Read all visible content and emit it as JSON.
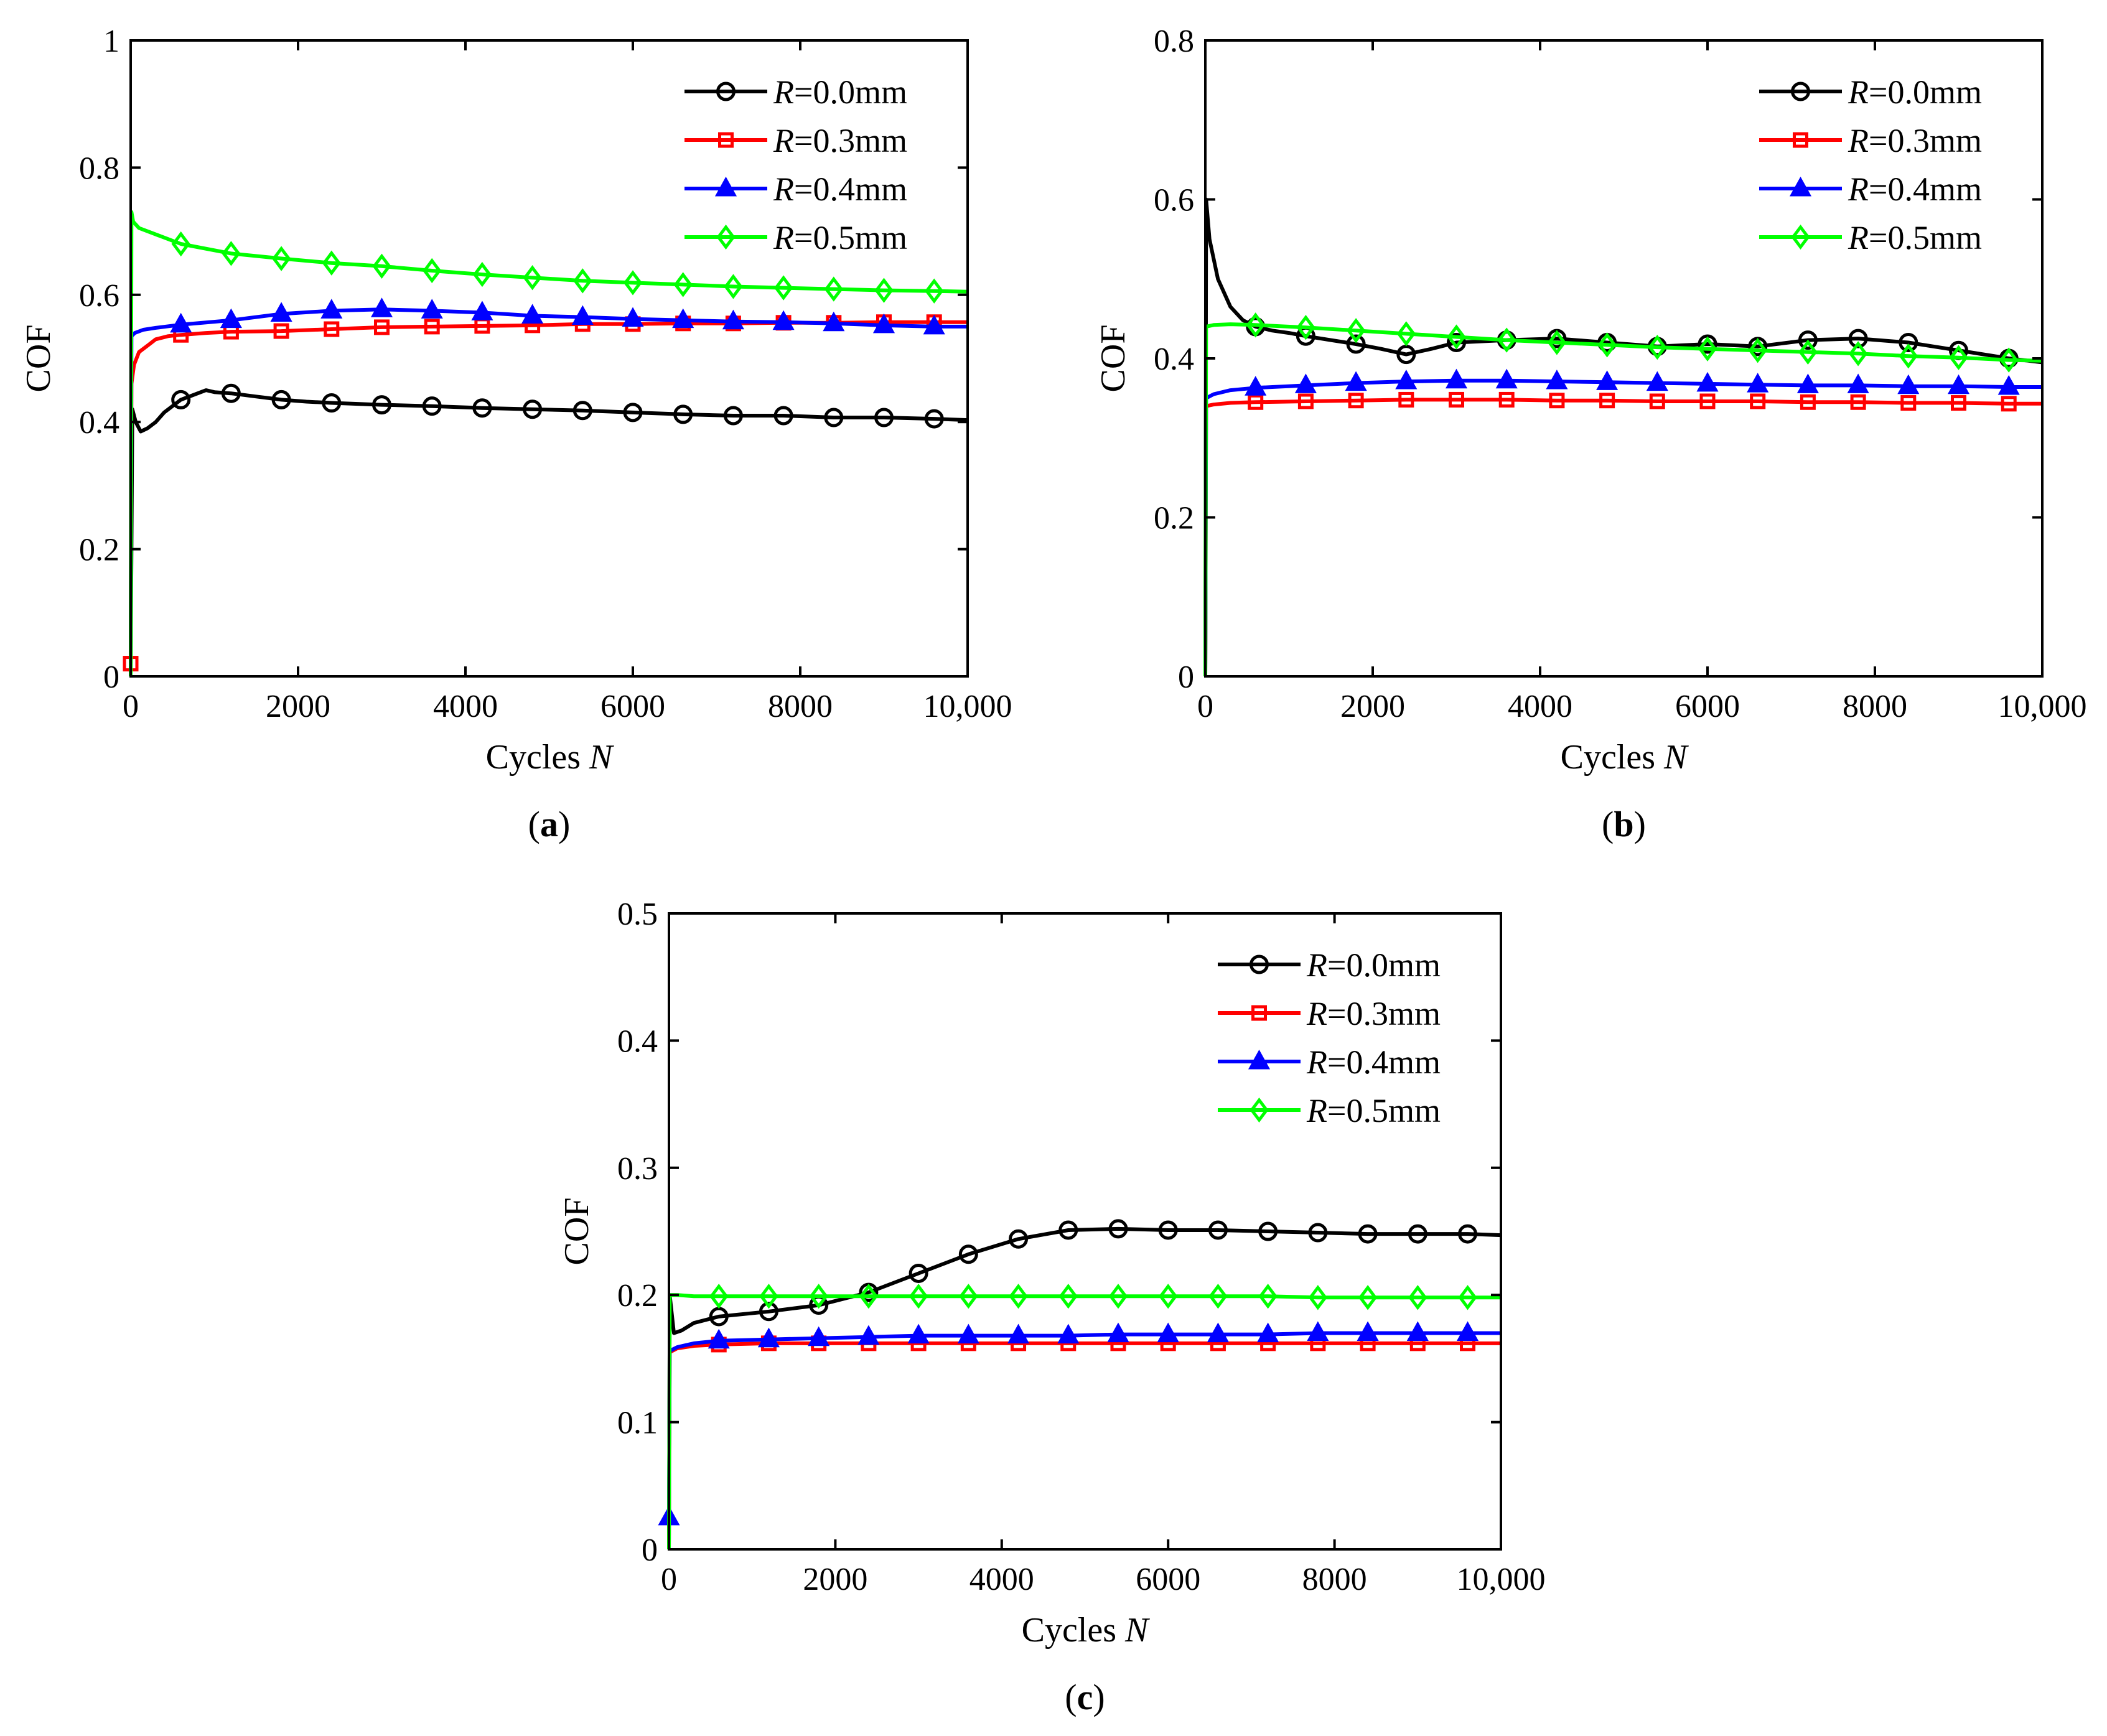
{
  "figure": {
    "panels_count": 3,
    "colors": {
      "R=0.0mm": "#000000",
      "R=0.3mm": "#ff0000",
      "R=0.4mm": "#0000ff",
      "R=0.5mm": "#00ff00",
      "axes": "#000000",
      "background": "#ffffff"
    },
    "legend_prefix": "R",
    "legend_labels": [
      "=0.0mm",
      "=0.3mm",
      "=0.4mm",
      "=0.5mm"
    ],
    "markers": [
      "circle",
      "square",
      "triangle",
      "diamond"
    ]
  },
  "chart_data": [
    {
      "type": "line",
      "panel_label": "a",
      "title": "",
      "xlabel": "Cycles",
      "xlabel_var": "N",
      "ylabel": "COF",
      "xlim": [
        0,
        10000
      ],
      "ylim": [
        0,
        1
      ],
      "xticks": [
        0,
        2000,
        4000,
        6000,
        8000,
        10000
      ],
      "xtick_labels": [
        "0",
        "2000",
        "4000",
        "6000",
        "8000",
        "10,000"
      ],
      "yticks": [
        0,
        0.2,
        0.4,
        0.6,
        0.8,
        1
      ],
      "ytick_labels": [
        "0",
        "0.2",
        "0.4",
        "0.6",
        "0.8",
        "1"
      ],
      "legend_position": "top-right",
      "grid": false,
      "series": [
        {
          "name": "R=0.0mm",
          "marker": "circle",
          "x": [
            0,
            20,
            60,
            120,
            200,
            300,
            400,
            600,
            800,
            900,
            1000,
            1200,
            1500,
            1800,
            2100,
            2400,
            3000,
            3600,
            4200,
            4800,
            5400,
            6000,
            6600,
            7200,
            7800,
            8400,
            9000,
            9600,
            10000
          ],
          "y": [
            0.0,
            0.42,
            0.4,
            0.385,
            0.39,
            0.4,
            0.415,
            0.435,
            0.445,
            0.45,
            0.447,
            0.445,
            0.44,
            0.435,
            0.432,
            0.43,
            0.427,
            0.425,
            0.422,
            0.42,
            0.418,
            0.415,
            0.412,
            0.41,
            0.41,
            0.407,
            0.407,
            0.405,
            0.403
          ]
        },
        {
          "name": "R=0.3mm",
          "marker": "square",
          "x": [
            0,
            10,
            40,
            100,
            200,
            300,
            450,
            600,
            900,
            1200,
            1800,
            2400,
            3000,
            3600,
            4200,
            4800,
            5400,
            6000,
            6600,
            7200,
            7800,
            8400,
            9000,
            9600,
            10000
          ],
          "y": [
            0.02,
            0.46,
            0.49,
            0.51,
            0.52,
            0.53,
            0.535,
            0.537,
            0.54,
            0.542,
            0.543,
            0.546,
            0.549,
            0.55,
            0.551,
            0.552,
            0.554,
            0.554,
            0.555,
            0.555,
            0.556,
            0.556,
            0.557,
            0.557,
            0.557
          ]
        },
        {
          "name": "R=0.4mm",
          "marker": "triangle",
          "x": [
            0,
            10,
            50,
            150,
            300,
            600,
            1200,
            1800,
            2400,
            3000,
            3600,
            4200,
            4800,
            5400,
            6000,
            6600,
            7200,
            7800,
            8400,
            9000,
            9600,
            10000
          ],
          "y": [
            0.0,
            0.535,
            0.54,
            0.545,
            0.548,
            0.553,
            0.56,
            0.57,
            0.575,
            0.577,
            0.575,
            0.572,
            0.567,
            0.565,
            0.562,
            0.56,
            0.558,
            0.557,
            0.555,
            0.552,
            0.55,
            0.55
          ]
        },
        {
          "name": "R=0.5mm",
          "marker": "diamond",
          "x": [
            0,
            10,
            30,
            100,
            300,
            600,
            1200,
            1800,
            2400,
            3000,
            3600,
            4200,
            4800,
            5400,
            6000,
            6600,
            7200,
            7800,
            8400,
            9000,
            9600,
            10000
          ],
          "y": [
            0.0,
            0.73,
            0.715,
            0.705,
            0.695,
            0.68,
            0.665,
            0.657,
            0.65,
            0.645,
            0.638,
            0.632,
            0.627,
            0.622,
            0.619,
            0.616,
            0.613,
            0.611,
            0.609,
            0.607,
            0.606,
            0.605
          ]
        }
      ]
    },
    {
      "type": "line",
      "panel_label": "b",
      "title": "",
      "xlabel": "Cycles",
      "xlabel_var": "N",
      "ylabel": "COF",
      "xlim": [
        0,
        10000
      ],
      "ylim": [
        0,
        0.8
      ],
      "xticks": [
        0,
        2000,
        4000,
        6000,
        8000,
        10000
      ],
      "xtick_labels": [
        "0",
        "2000",
        "4000",
        "6000",
        "8000",
        "10,000"
      ],
      "yticks": [
        0,
        0.2,
        0.4,
        0.6,
        0.8
      ],
      "ytick_labels": [
        "0",
        "0.2",
        "0.4",
        "0.6",
        "0.8"
      ],
      "legend_position": "top-right",
      "grid": false,
      "series": [
        {
          "name": "R=0.0mm",
          "marker": "circle",
          "x": [
            0,
            10,
            50,
            150,
            300,
            450,
            600,
            800,
            1000,
            1200,
            1500,
            1800,
            2100,
            2400,
            2700,
            3000,
            3600,
            4200,
            4800,
            5400,
            6000,
            6600,
            7200,
            7800,
            8400,
            9000,
            9600,
            10000
          ],
          "y": [
            0.0,
            0.6,
            0.55,
            0.5,
            0.465,
            0.448,
            0.44,
            0.435,
            0.432,
            0.428,
            0.423,
            0.418,
            0.412,
            0.405,
            0.412,
            0.42,
            0.423,
            0.425,
            0.42,
            0.415,
            0.418,
            0.415,
            0.423,
            0.425,
            0.42,
            0.41,
            0.4,
            0.395
          ]
        },
        {
          "name": "R=0.3mm",
          "marker": "square",
          "x": [
            0,
            10,
            100,
            300,
            600,
            1200,
            1800,
            2400,
            3000,
            3600,
            4200,
            4800,
            5400,
            6000,
            6600,
            7200,
            7800,
            8400,
            9000,
            9600,
            10000
          ],
          "y": [
            0.0,
            0.34,
            0.342,
            0.344,
            0.345,
            0.346,
            0.347,
            0.348,
            0.348,
            0.348,
            0.347,
            0.347,
            0.346,
            0.346,
            0.346,
            0.345,
            0.345,
            0.344,
            0.344,
            0.343,
            0.343
          ]
        },
        {
          "name": "R=0.4mm",
          "marker": "triangle",
          "x": [
            0,
            10,
            100,
            300,
            600,
            1200,
            1800,
            2400,
            3000,
            3600,
            4200,
            4800,
            5400,
            6000,
            6600,
            7200,
            7800,
            8400,
            9000,
            9600,
            10000
          ],
          "y": [
            0.0,
            0.35,
            0.355,
            0.36,
            0.363,
            0.366,
            0.369,
            0.371,
            0.372,
            0.372,
            0.371,
            0.37,
            0.369,
            0.368,
            0.367,
            0.366,
            0.366,
            0.365,
            0.365,
            0.364,
            0.364
          ]
        },
        {
          "name": "R=0.5mm",
          "marker": "diamond",
          "x": [
            0,
            10,
            100,
            300,
            600,
            1200,
            1800,
            2400,
            3000,
            3600,
            4200,
            4800,
            5400,
            6000,
            6600,
            7200,
            7800,
            8400,
            9000,
            9600,
            10000
          ],
          "y": [
            0.0,
            0.44,
            0.442,
            0.443,
            0.442,
            0.439,
            0.435,
            0.431,
            0.427,
            0.423,
            0.42,
            0.417,
            0.414,
            0.412,
            0.41,
            0.408,
            0.406,
            0.403,
            0.401,
            0.398,
            0.397
          ]
        }
      ]
    },
    {
      "type": "line",
      "panel_label": "c",
      "title": "",
      "xlabel": "Cycles",
      "xlabel_var": "N",
      "ylabel": "COF",
      "xlim": [
        0,
        10000
      ],
      "ylim": [
        0,
        0.5
      ],
      "xticks": [
        0,
        2000,
        4000,
        6000,
        8000,
        10000
      ],
      "xtick_labels": [
        "0",
        "2000",
        "4000",
        "6000",
        "8000",
        "10,000"
      ],
      "yticks": [
        0,
        0.1,
        0.2,
        0.3,
        0.4,
        0.5
      ],
      "ytick_labels": [
        "0",
        "0.1",
        "0.2",
        "0.3",
        "0.4",
        "0.5"
      ],
      "legend_position": "top-right",
      "grid": false,
      "series": [
        {
          "name": "R=0.0mm",
          "marker": "circle",
          "x": [
            0,
            10,
            60,
            150,
            300,
            600,
            1200,
            1800,
            2400,
            3000,
            3600,
            4200,
            4800,
            5400,
            6000,
            6600,
            7200,
            7800,
            8400,
            9000,
            9600,
            10000
          ],
          "y": [
            0.0,
            0.2,
            0.17,
            0.172,
            0.178,
            0.183,
            0.187,
            0.192,
            0.202,
            0.217,
            0.232,
            0.244,
            0.251,
            0.252,
            0.251,
            0.251,
            0.25,
            0.249,
            0.248,
            0.248,
            0.248,
            0.247
          ]
        },
        {
          "name": "R=0.3mm",
          "marker": "square",
          "x": [
            0,
            10,
            100,
            300,
            600,
            1200,
            1800,
            2400,
            3000,
            3600,
            4200,
            4800,
            5400,
            6000,
            6600,
            7200,
            7800,
            8400,
            9000,
            9600,
            10000
          ],
          "y": [
            0.0,
            0.155,
            0.158,
            0.16,
            0.161,
            0.162,
            0.162,
            0.162,
            0.162,
            0.162,
            0.162,
            0.162,
            0.162,
            0.162,
            0.162,
            0.162,
            0.162,
            0.162,
            0.162,
            0.162,
            0.162
          ]
        },
        {
          "name": "R=0.4mm",
          "marker": "triangle",
          "x": [
            0,
            10,
            100,
            300,
            600,
            1200,
            1800,
            2400,
            3000,
            3600,
            4200,
            4800,
            5400,
            6000,
            6600,
            7200,
            7800,
            8400,
            9000,
            9600,
            10000
          ],
          "y": [
            0.025,
            0.156,
            0.159,
            0.162,
            0.164,
            0.165,
            0.166,
            0.167,
            0.168,
            0.168,
            0.168,
            0.168,
            0.169,
            0.169,
            0.169,
            0.169,
            0.17,
            0.17,
            0.17,
            0.17,
            0.17
          ]
        },
        {
          "name": "R=0.5mm",
          "marker": "diamond",
          "x": [
            0,
            10,
            100,
            300,
            600,
            1200,
            1800,
            2400,
            3000,
            3600,
            4200,
            4800,
            5400,
            6000,
            6600,
            7200,
            7800,
            8400,
            9000,
            9600,
            10000
          ],
          "y": [
            0.0,
            0.2,
            0.2,
            0.199,
            0.199,
            0.199,
            0.199,
            0.199,
            0.199,
            0.199,
            0.199,
            0.199,
            0.199,
            0.199,
            0.199,
            0.199,
            0.198,
            0.198,
            0.198,
            0.198,
            0.198
          ]
        }
      ]
    }
  ]
}
